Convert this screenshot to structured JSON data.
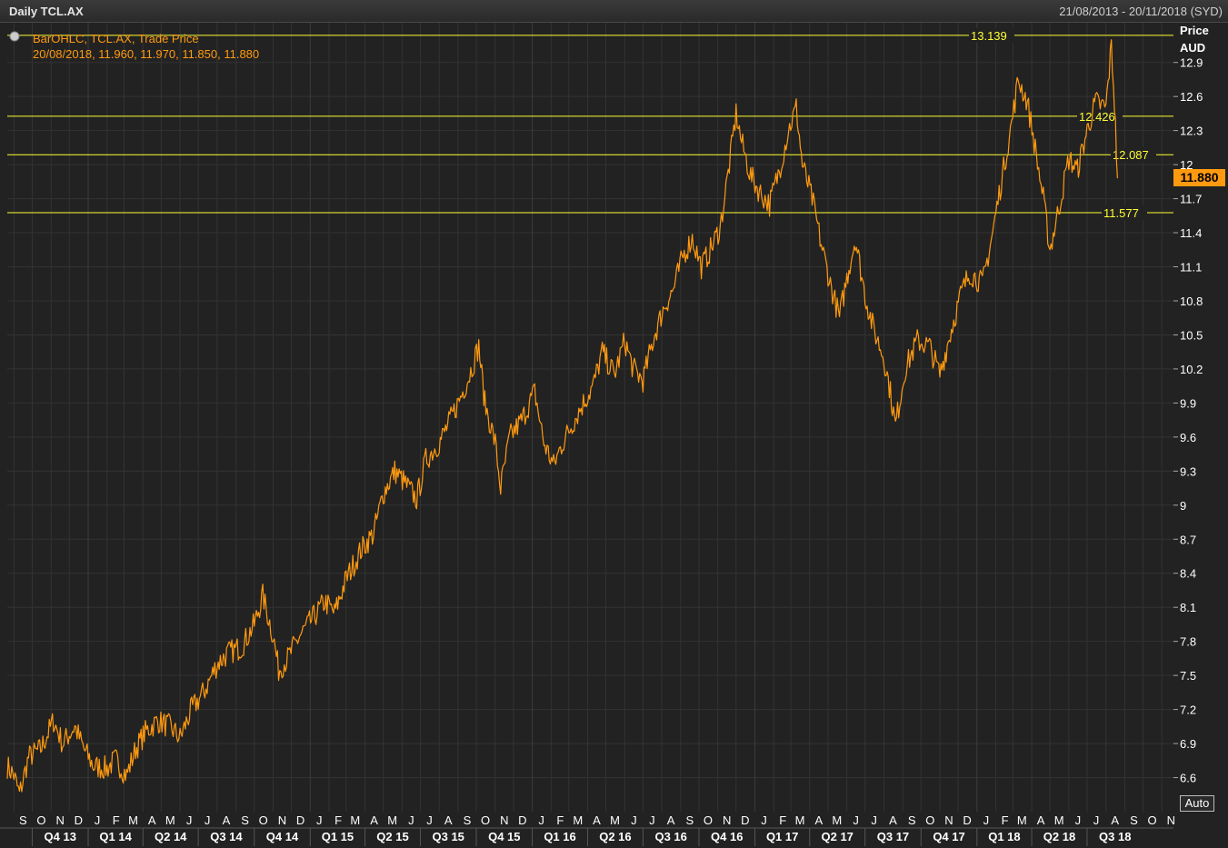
{
  "header": {
    "title": "Daily TCL.AX",
    "date_range": "21/08/2013 - 20/11/2018 (SYD)"
  },
  "legend": {
    "line1": "BarOHLC, TCL.AX, Trade Price",
    "line2": "20/08/2018, 11.960, 11.970, 11.850, 11.880"
  },
  "axis": {
    "price_label": "Price",
    "currency_label": "AUD",
    "auto_button": "Auto"
  },
  "colors": {
    "series": "#ff9a10",
    "hlines": "#ffff33",
    "background": "#222222",
    "grid": "#333333"
  },
  "chart_data": {
    "type": "line",
    "title": "Daily TCL.AX",
    "ylabel": "Price AUD",
    "ylim": [
      6.3,
      13.25
    ],
    "y_ticks": [
      "6.6",
      "6.9",
      "7.2",
      "7.5",
      "7.8",
      "8.1",
      "8.4",
      "8.7",
      "9",
      "9.3",
      "9.6",
      "9.9",
      "10.2",
      "10.5",
      "10.8",
      "11.1",
      "11.4",
      "11.7",
      "12",
      "12.3",
      "12.6",
      "12.9"
    ],
    "month_ticks": [
      "S",
      "O",
      "N",
      "D",
      "J",
      "F",
      "M",
      "A",
      "M",
      "J",
      "J",
      "A",
      "S",
      "O",
      "N",
      "D",
      "J",
      "F",
      "M",
      "A",
      "M",
      "J",
      "J",
      "A",
      "S",
      "O",
      "N",
      "D",
      "J",
      "F",
      "M",
      "A",
      "M",
      "J",
      "J",
      "A",
      "S",
      "O",
      "N",
      "D",
      "J",
      "F",
      "M",
      "A",
      "M",
      "J",
      "J",
      "A",
      "S",
      "O",
      "N",
      "D",
      "J",
      "F",
      "M",
      "A",
      "M",
      "J",
      "J",
      "A",
      "S",
      "O",
      "N"
    ],
    "quarter_ticks": [
      "Q4 13",
      "Q1 14",
      "Q2 14",
      "Q3 14",
      "Q4 14",
      "Q1 15",
      "Q2 15",
      "Q3 15",
      "Q4 15",
      "Q1 16",
      "Q2 16",
      "Q3 16",
      "Q4 16",
      "Q1 17",
      "Q2 17",
      "Q3 17",
      "Q4 17",
      "Q1 18",
      "Q2 18",
      "Q3 18"
    ],
    "x_start": "2013-08-21",
    "x_end": "2018-11-20",
    "last_value": "11.880",
    "horizontal_lines": [
      {
        "value": 13.139,
        "label": "13.139"
      },
      {
        "value": 12.426,
        "label": "12.426"
      },
      {
        "value": 12.087,
        "label": "12.087"
      },
      {
        "value": 11.577,
        "label": "11.577"
      }
    ],
    "series": [
      {
        "values": [
          [
            "2013-08-21",
            6.7
          ],
          [
            "2013-09-01",
            6.62
          ],
          [
            "2013-09-10",
            6.45
          ],
          [
            "2013-09-25",
            6.78
          ],
          [
            "2013-10-15",
            6.85
          ],
          [
            "2013-11-05",
            7.1
          ],
          [
            "2013-11-20",
            6.9
          ],
          [
            "2013-12-10",
            7.05
          ],
          [
            "2013-12-25",
            6.85
          ],
          [
            "2014-01-10",
            6.7
          ],
          [
            "2014-02-01",
            6.68
          ],
          [
            "2014-02-15",
            6.76
          ],
          [
            "2014-03-05",
            6.62
          ],
          [
            "2014-03-20",
            6.85
          ],
          [
            "2014-04-05",
            7.0
          ],
          [
            "2014-04-25",
            7.1
          ],
          [
            "2014-05-15",
            7.05
          ],
          [
            "2014-06-01",
            6.95
          ],
          [
            "2014-06-20",
            7.2
          ],
          [
            "2014-07-10",
            7.35
          ],
          [
            "2014-08-01",
            7.6
          ],
          [
            "2014-08-20",
            7.7
          ],
          [
            "2014-09-10",
            7.75
          ],
          [
            "2014-10-01",
            7.95
          ],
          [
            "2014-10-15",
            8.2
          ],
          [
            "2014-11-01",
            7.85
          ],
          [
            "2014-11-10",
            7.55
          ],
          [
            "2014-11-25",
            7.65
          ],
          [
            "2014-12-15",
            7.85
          ],
          [
            "2015-01-05",
            8.0
          ],
          [
            "2015-01-25",
            8.15
          ],
          [
            "2015-02-10",
            8.05
          ],
          [
            "2015-03-01",
            8.35
          ],
          [
            "2015-03-25",
            8.6
          ],
          [
            "2015-04-15",
            8.75
          ],
          [
            "2015-05-01",
            9.1
          ],
          [
            "2015-05-20",
            9.3
          ],
          [
            "2015-06-05",
            9.2
          ],
          [
            "2015-06-25",
            9.05
          ],
          [
            "2015-07-10",
            9.4
          ],
          [
            "2015-08-01",
            9.55
          ],
          [
            "2015-08-15",
            9.7
          ],
          [
            "2015-09-05",
            9.95
          ],
          [
            "2015-09-20",
            10.15
          ],
          [
            "2015-10-05",
            10.4
          ],
          [
            "2015-10-15",
            9.9
          ],
          [
            "2015-11-01",
            9.55
          ],
          [
            "2015-11-10",
            9.15
          ],
          [
            "2015-11-25",
            9.6
          ],
          [
            "2015-12-15",
            9.75
          ],
          [
            "2016-01-05",
            10.0
          ],
          [
            "2016-01-20",
            9.55
          ],
          [
            "2016-02-05",
            9.35
          ],
          [
            "2016-02-20",
            9.55
          ],
          [
            "2016-03-10",
            9.75
          ],
          [
            "2016-03-25",
            9.9
          ],
          [
            "2016-04-10",
            10.05
          ],
          [
            "2016-04-25",
            10.35
          ],
          [
            "2016-05-15",
            10.15
          ],
          [
            "2016-06-01",
            10.45
          ],
          [
            "2016-06-15",
            10.2
          ],
          [
            "2016-07-01",
            10.1
          ],
          [
            "2016-07-20",
            10.5
          ],
          [
            "2016-08-05",
            10.75
          ],
          [
            "2016-08-20",
            10.9
          ],
          [
            "2016-09-05",
            11.2
          ],
          [
            "2016-09-20",
            11.35
          ],
          [
            "2016-10-05",
            11.1
          ],
          [
            "2016-10-20",
            11.25
          ],
          [
            "2016-11-05",
            11.45
          ],
          [
            "2016-11-20",
            12.0
          ],
          [
            "2016-12-01",
            12.45
          ],
          [
            "2016-12-10",
            12.2
          ],
          [
            "2016-12-25",
            11.9
          ],
          [
            "2017-01-10",
            11.75
          ],
          [
            "2017-01-25",
            11.65
          ],
          [
            "2017-02-10",
            11.95
          ],
          [
            "2017-02-25",
            12.3
          ],
          [
            "2017-03-10",
            12.5
          ],
          [
            "2017-03-20",
            12.0
          ],
          [
            "2017-04-05",
            11.7
          ],
          [
            "2017-04-20",
            11.3
          ],
          [
            "2017-05-05",
            10.95
          ],
          [
            "2017-05-20",
            10.65
          ],
          [
            "2017-06-01",
            11.0
          ],
          [
            "2017-06-15",
            11.35
          ],
          [
            "2017-07-01",
            10.85
          ],
          [
            "2017-07-15",
            10.55
          ],
          [
            "2017-08-01",
            10.3
          ],
          [
            "2017-08-10",
            10.05
          ],
          [
            "2017-08-20",
            9.7
          ],
          [
            "2017-09-05",
            10.2
          ],
          [
            "2017-09-25",
            10.45
          ],
          [
            "2017-10-15",
            10.4
          ],
          [
            "2017-11-01",
            10.15
          ],
          [
            "2017-11-20",
            10.55
          ],
          [
            "2017-12-05",
            10.85
          ],
          [
            "2017-12-20",
            11.05
          ],
          [
            "2018-01-10",
            10.95
          ],
          [
            "2018-01-25",
            11.35
          ],
          [
            "2018-02-10",
            11.85
          ],
          [
            "2018-02-25",
            12.3
          ],
          [
            "2018-03-10",
            12.75
          ],
          [
            "2018-03-25",
            12.55
          ],
          [
            "2018-04-05",
            12.2
          ],
          [
            "2018-04-20",
            11.7
          ],
          [
            "2018-05-01",
            11.25
          ],
          [
            "2018-05-15",
            11.6
          ],
          [
            "2018-06-01",
            12.05
          ],
          [
            "2018-06-15",
            11.95
          ],
          [
            "2018-07-01",
            12.3
          ],
          [
            "2018-07-15",
            12.55
          ],
          [
            "2018-08-01",
            12.5
          ],
          [
            "2018-08-10",
            13.05
          ],
          [
            "2018-08-15",
            12.55
          ],
          [
            "2018-08-20",
            11.88
          ]
        ]
      }
    ]
  }
}
